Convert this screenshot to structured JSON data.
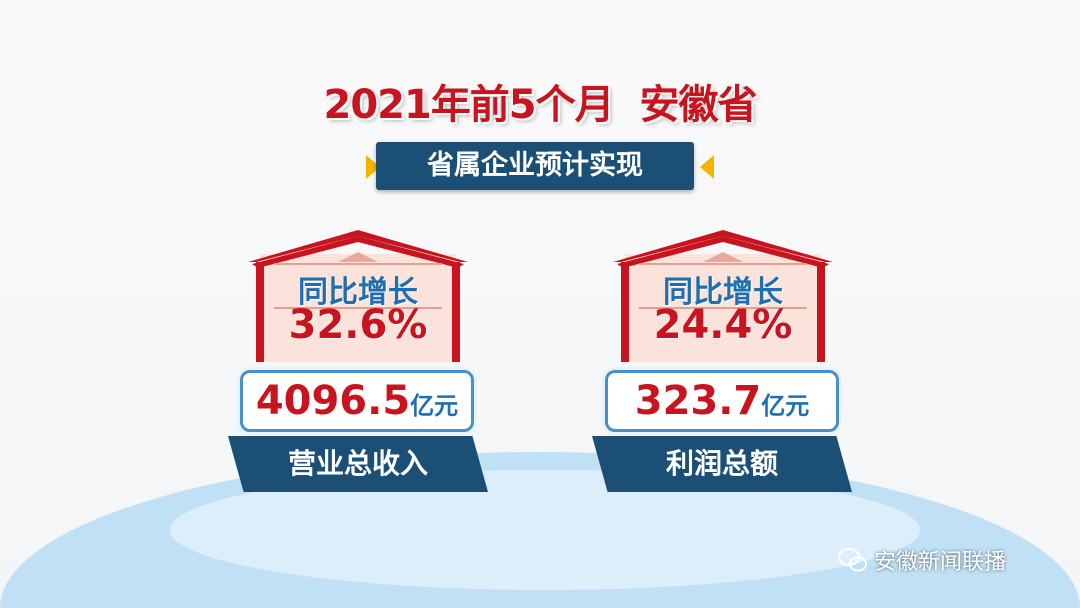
{
  "title": "2021年前5个月  安徽省",
  "subtitle": "省属企业预计实现",
  "cards": [
    {
      "growth_label": "同比增长",
      "growth_value": "32.6%",
      "amount": "4096.5",
      "unit": "亿元",
      "name": "营业总收入"
    },
    {
      "growth_label": "同比增长",
      "growth_value": "24.4%",
      "amount": "323.7",
      "unit": "亿元",
      "name": "利润总额"
    }
  ],
  "watermark": {
    "icon": "wechat-icon",
    "text": "安徽新闻联播"
  },
  "colors": {
    "red": "#c8141e",
    "navy": "#1b4f75",
    "blue": "#1f6fb0",
    "accent": "#f5b400"
  }
}
